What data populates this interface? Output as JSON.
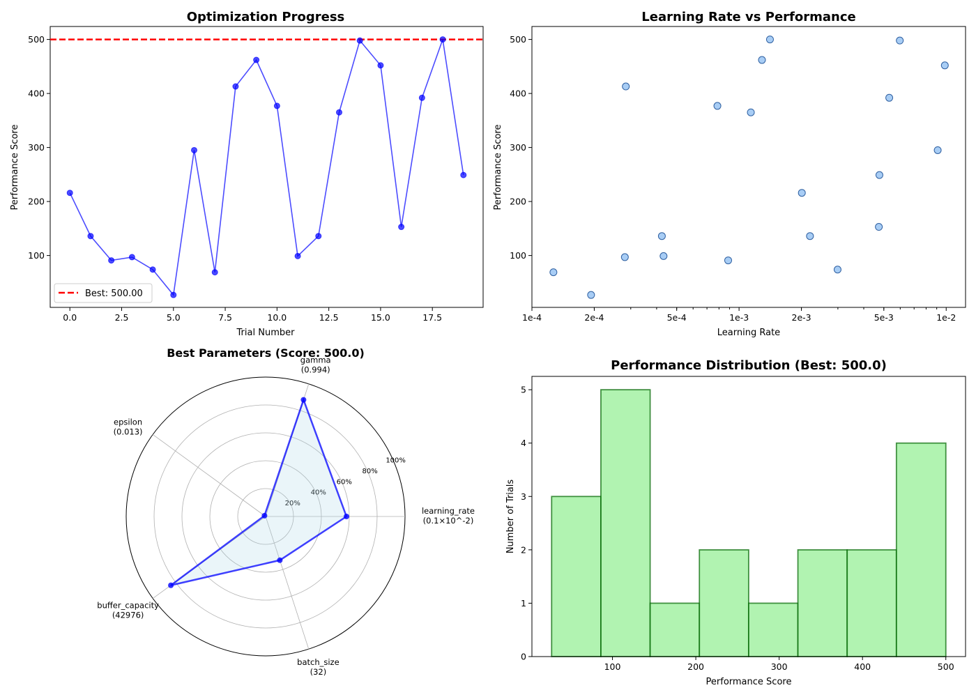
{
  "chart_data": [
    {
      "type": "line",
      "title": "Optimization Progress",
      "xlabel": "Trial Number",
      "ylabel": "Performance Score",
      "xlim": [
        -0.95,
        19.95
      ],
      "ylim": [
        4,
        524
      ],
      "xticks": [
        0,
        2.5,
        5,
        7.5,
        10,
        12.5,
        15,
        17.5
      ],
      "xtick_labels": [
        "0.0",
        "2.5",
        "5.0",
        "7.5",
        "10.0",
        "12.5",
        "15.0",
        "17.5"
      ],
      "yticks": [
        100,
        200,
        300,
        400,
        500
      ],
      "ytick_labels": [
        "100",
        "200",
        "300",
        "400",
        "500"
      ],
      "x": [
        0,
        1,
        2,
        3,
        4,
        5,
        6,
        7,
        8,
        9,
        10,
        11,
        12,
        13,
        14,
        15,
        16,
        17,
        18,
        19
      ],
      "y": [
        216,
        136,
        91,
        97,
        74,
        27,
        295,
        69,
        413,
        462,
        377,
        99,
        136,
        365,
        498,
        452,
        153,
        392,
        500,
        249
      ],
      "color": "#0000ff",
      "best_line": {
        "value": 500,
        "color": "#ff0000",
        "label": "Best: 500.00"
      },
      "legend_position": "lower-left",
      "grid": false
    },
    {
      "type": "scatter",
      "title": "Learning Rate vs Performance",
      "xlabel": "Learning Rate",
      "ylabel": "Performance Score",
      "xscale": "log",
      "xlim": [
        0.0001,
        0.0124
      ],
      "ylim": [
        4,
        524
      ],
      "xticks": [
        0.0001,
        0.0002,
        0.0005,
        0.001,
        0.002,
        0.005,
        0.01
      ],
      "xtick_labels": [
        "1e-4",
        "2e-4",
        "5e-4",
        "1e-3",
        "2e-3",
        "5e-3",
        "1e-2"
      ],
      "yticks": [
        100,
        200,
        300,
        400,
        500
      ],
      "ytick_labels": [
        "100",
        "200",
        "300",
        "400",
        "500"
      ],
      "x": [
        0.000127,
        0.000193,
        0.000281,
        0.000284,
        0.000424,
        0.000432,
        0.000786,
        0.000886,
        0.00114,
        0.00129,
        0.00141,
        0.00201,
        0.0022,
        0.00299,
        0.00473,
        0.00476,
        0.00531,
        0.00597,
        0.0091,
        0.00985
      ],
      "y": [
        69,
        27,
        97,
        413,
        136,
        99,
        377,
        91,
        365,
        462,
        500,
        216,
        136,
        74,
        153,
        249,
        392,
        498,
        295,
        452
      ],
      "fill": "#a8cdf5",
      "edge": "#2e5fa0",
      "grid": false
    },
    {
      "type": "radar",
      "title": "Best Parameters (Score: 500.0)",
      "axes": [
        {
          "name": "learning_rate",
          "value_label": "(0.1×10^-2)",
          "value": 0.58
        },
        {
          "name": "gamma",
          "value_label": "(0.994)",
          "value": 0.88
        },
        {
          "name": "epsilon",
          "value_label": "(0.013)",
          "value": 0.01
        },
        {
          "name": "buffer_capacity",
          "value_label": "(42976)",
          "value": 0.84
        },
        {
          "name": "batch_size",
          "value_label": "(32)",
          "value": 0.33
        }
      ],
      "rticks": [
        0.2,
        0.4,
        0.6,
        0.8,
        1.0
      ],
      "rtick_labels": [
        "20%",
        "40%",
        "60%",
        "80%",
        "100%"
      ],
      "color": "#0000ff",
      "fill": "#add8e6"
    },
    {
      "type": "bar",
      "title": "Performance Distribution (Best: 500.0)",
      "xlabel": "Performance Score",
      "ylabel": "Number of Trials",
      "bin_edges": [
        27,
        86.1,
        145.2,
        204.3,
        263.4,
        322.5,
        381.6,
        440.7,
        500
      ],
      "counts": [
        3,
        5,
        1,
        2,
        1,
        2,
        2,
        4
      ],
      "xlim": [
        3.35,
        523.65
      ],
      "ylim": [
        0,
        5.25
      ],
      "xticks": [
        100,
        200,
        300,
        400,
        500
      ],
      "xtick_labels": [
        "100",
        "200",
        "300",
        "400",
        "500"
      ],
      "yticks": [
        0,
        1,
        2,
        3,
        4,
        5
      ],
      "ytick_labels": [
        "0",
        "1",
        "2",
        "3",
        "4",
        "5"
      ],
      "fill": "#90ee90",
      "edge": "#006400",
      "grid": false
    }
  ]
}
